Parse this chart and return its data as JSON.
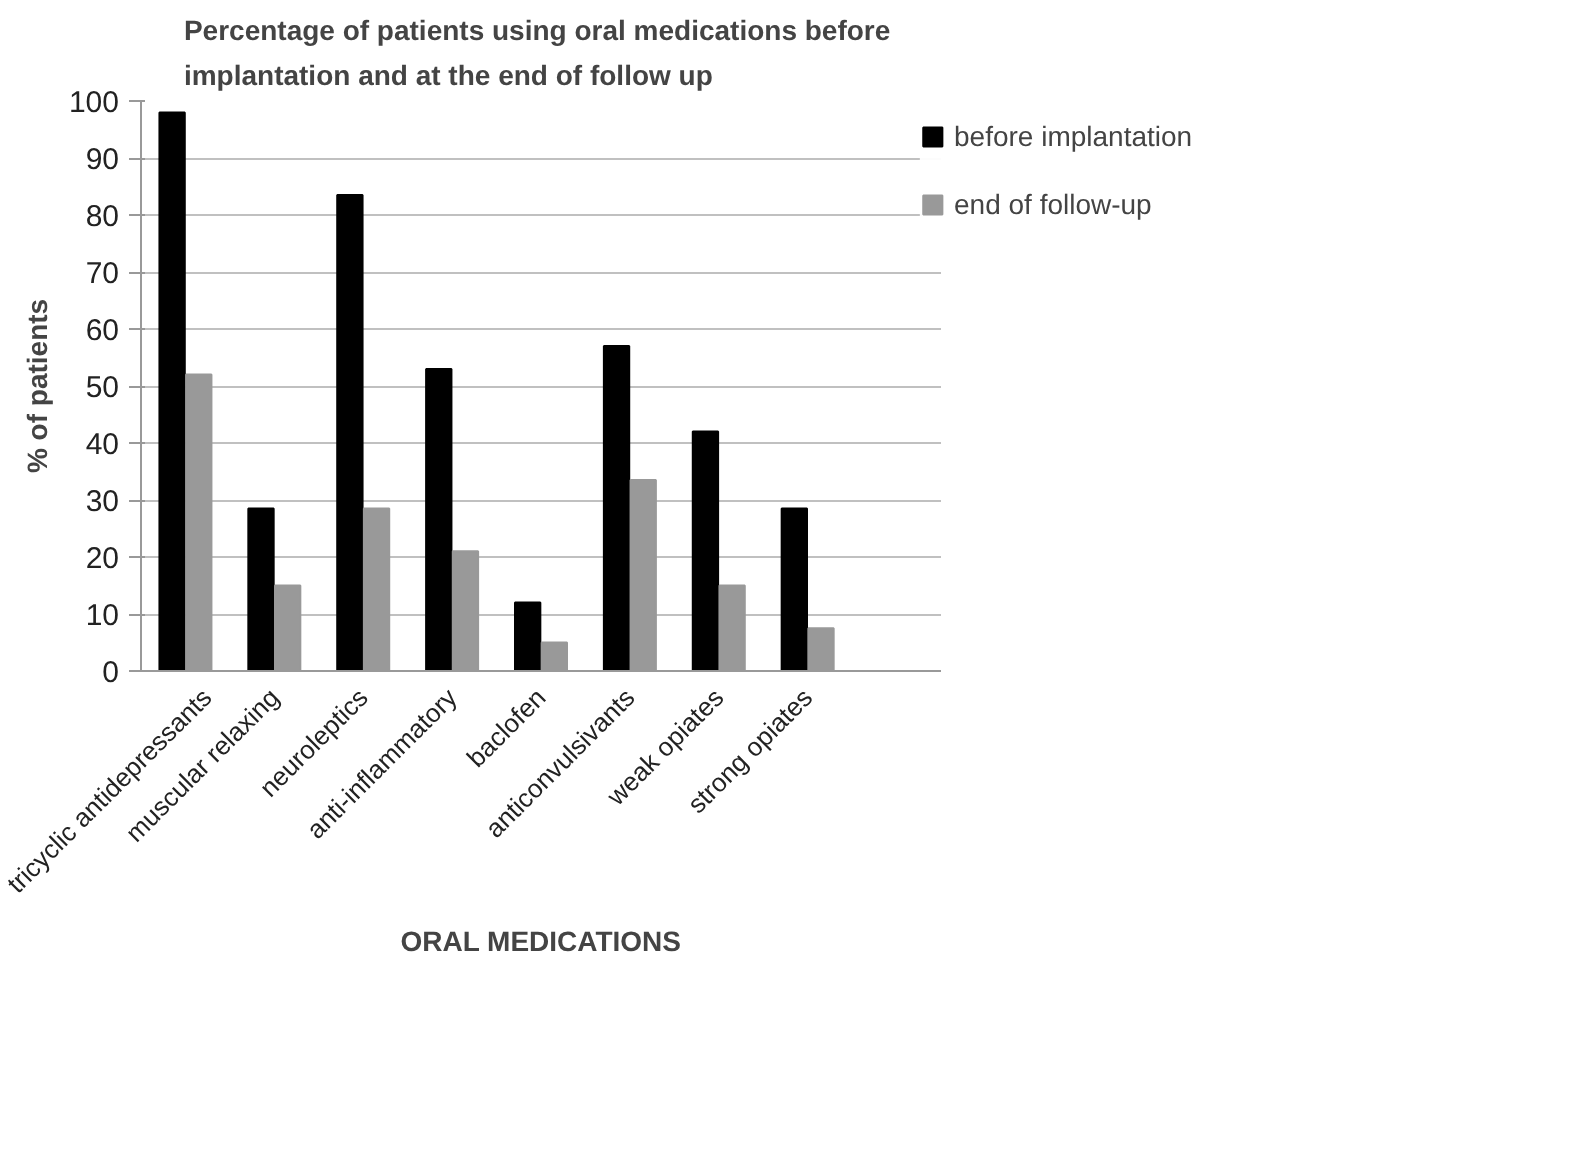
{
  "chart_data": {
    "type": "bar",
    "title": "Percentage of patients using  oral medications before\nimplantation and at the end of follow up",
    "xlabel": "ORAL MEDICATIONS",
    "ylabel": "% of patients",
    "categories": [
      "tricyclic antidepressants",
      "muscular relaxing",
      "neuroleptics",
      "anti-inflammatory",
      "baclofen",
      "anticonvulsivants",
      "weak opiates",
      "strong opiates",
      null
    ],
    "series": [
      {
        "name": "before implantation",
        "color": "#000000",
        "values": [
          98,
          28.5,
          83.5,
          53,
          12,
          57,
          42,
          28.5,
          null
        ]
      },
      {
        "name": "end of follow-up",
        "color": "#999999",
        "values": [
          52,
          15,
          28.5,
          21,
          5,
          33.5,
          15,
          7.5,
          null
        ]
      }
    ],
    "ylim": [
      0,
      100
    ],
    "yticks": [
      0,
      10,
      20,
      30,
      40,
      50,
      60,
      70,
      80,
      90,
      100
    ],
    "grid": "y",
    "legend": "right"
  }
}
